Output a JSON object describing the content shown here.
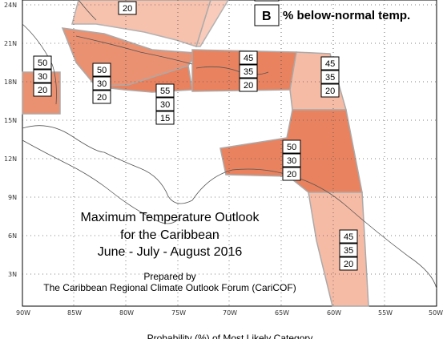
{
  "title_lines": [
    "Maximum Temperature Outlook",
    "for the Caribbean",
    "June - July - August 2016"
  ],
  "credit_lines": [
    "Prepared by",
    "The Caribbean Regional Climate Outlook Forum (CariCOF)"
  ],
  "legend": {
    "symbol": "B",
    "label": "% below-normal temp."
  },
  "axis_caption": "Probability (%) of Most Likely Category",
  "lat_labels": [
    "24N",
    "21N",
    "18N",
    "15N",
    "12N",
    "9N",
    "6N",
    "3N"
  ],
  "lon_labels": [
    "90W",
    "85W",
    "80W",
    "75W",
    "70W",
    "65W",
    "60W",
    "55W",
    "50W"
  ],
  "colors": {
    "above_55": "#e8825f",
    "above_50": "#ea9172",
    "above_45": "#f6bba5",
    "border": "#aaaaaa",
    "land": "#555555"
  },
  "probability_boxes": [
    {
      "id": "bahamas",
      "values": [
        "20"
      ]
    },
    {
      "id": "belize-yucatan",
      "values": [
        "50",
        "30",
        "20"
      ]
    },
    {
      "id": "cuba-jamaica",
      "values": [
        "50",
        "30",
        "20"
      ]
    },
    {
      "id": "haiti-jamaica-south",
      "values": [
        "55",
        "30",
        "15"
      ]
    },
    {
      "id": "greater-antilles-east",
      "values": [
        "45",
        "35",
        "20"
      ]
    },
    {
      "id": "leeward-islands",
      "values": [
        "45",
        "35",
        "20"
      ]
    },
    {
      "id": "windward-islands",
      "values": [
        "50",
        "30",
        "20"
      ]
    },
    {
      "id": "guianas",
      "values": [
        "45",
        "35",
        "20"
      ]
    }
  ]
}
